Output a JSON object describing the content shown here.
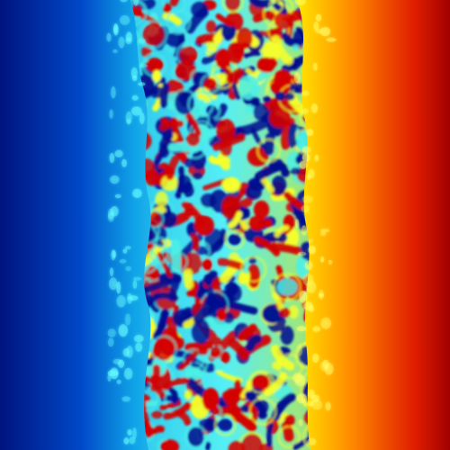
{
  "image": {
    "kind": "colormap-field",
    "description_visible_text": "",
    "colormap": {
      "name": "jet",
      "stops": [
        "#00007f",
        "#0000ff",
        "#007fff",
        "#00ffff",
        "#7fff7f",
        "#ffff00",
        "#ff7f00",
        "#ff0000",
        "#7f0000"
      ]
    },
    "gradient": {
      "direction": "left-to-right",
      "start_color": "#0b2f9a",
      "end_color": "#9e0000"
    },
    "pattern_band": {
      "present": true,
      "style": "labyrinthine-spots",
      "colors": {
        "low": "#06118f",
        "mid": "#4cf0e6",
        "high": "#d40000",
        "edge": "#f6ff2a"
      }
    }
  }
}
